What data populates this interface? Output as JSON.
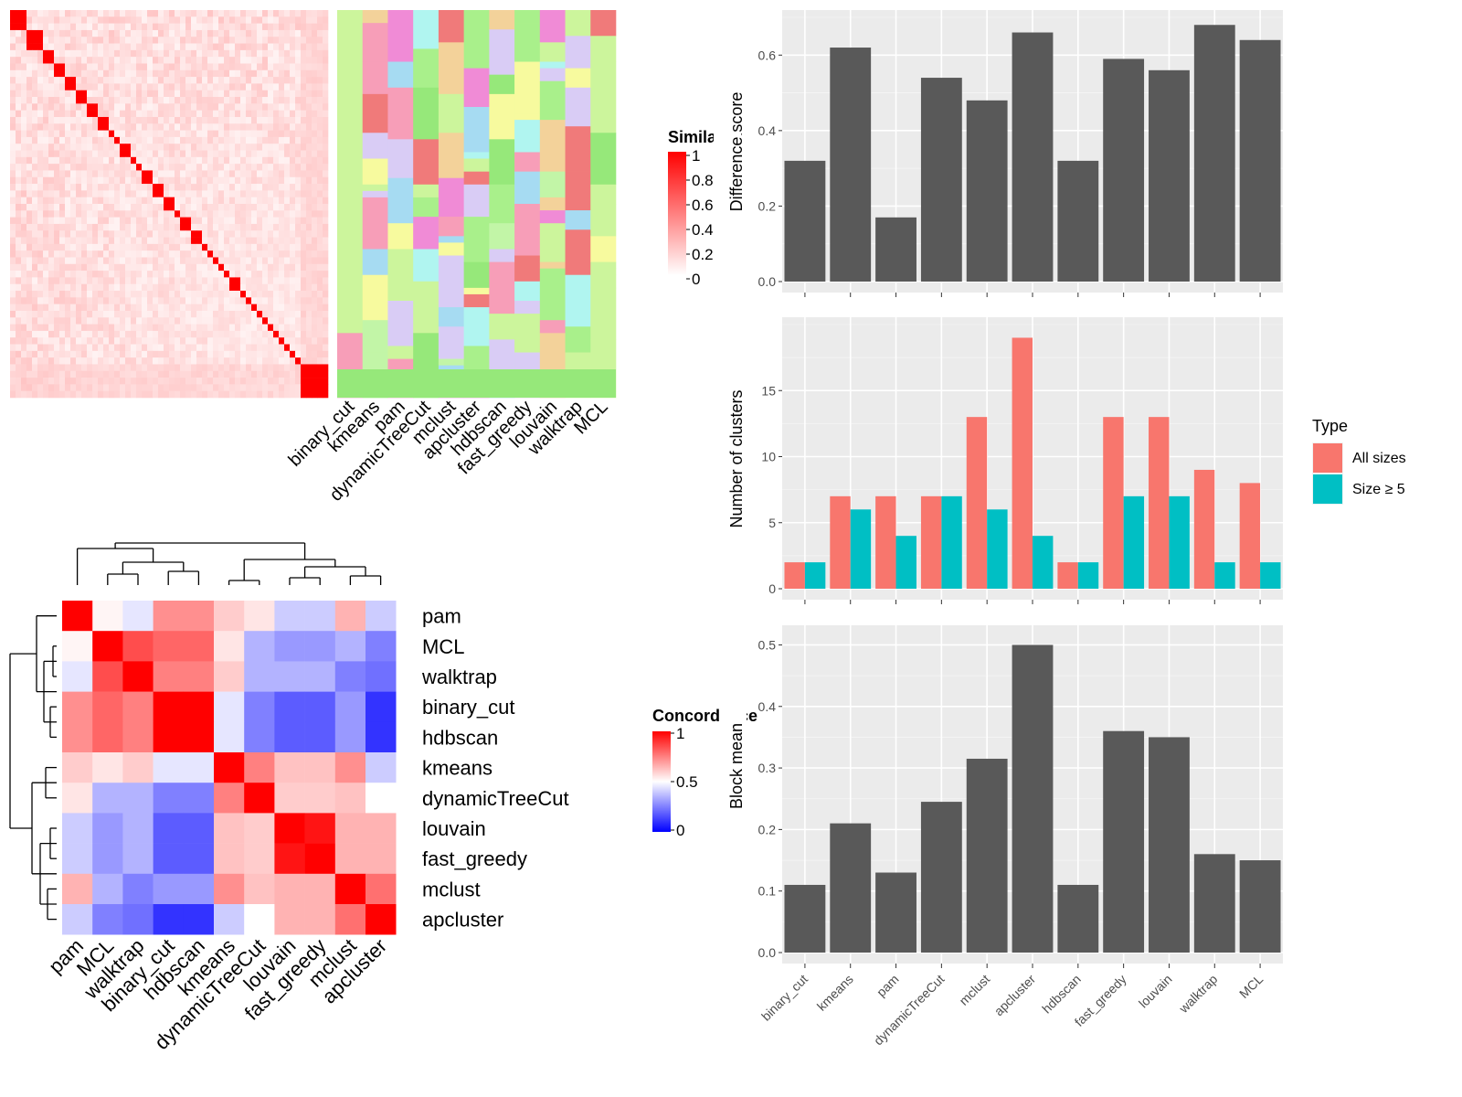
{
  "chart_data": [
    {
      "type": "heatmap",
      "legend_title": "Similarity",
      "legend_ticks": [
        "1",
        "0.8",
        "0.6",
        "0.4",
        "0.2",
        "0"
      ],
      "colors": {
        "high": "#ff0000",
        "low": "#ffffff"
      },
      "column_labels": [
        "binary_cut",
        "kmeans",
        "pam",
        "dynamicTreeCut",
        "mclust",
        "apcluster",
        "hdbscan",
        "fast_greedy",
        "louvain",
        "walktrap",
        "MCL"
      ]
    },
    {
      "type": "heatmap",
      "legend_title": "Concordance",
      "legend_ticks": [
        "1",
        "0.5",
        "0"
      ],
      "colors": {
        "high": "#ff0000",
        "mid": "#ffffff",
        "low": "#0000ff"
      },
      "row_labels": [
        "pam",
        "MCL",
        "walktrap",
        "binary_cut",
        "hdbscan",
        "kmeans",
        "dynamicTreeCut",
        "louvain",
        "fast_greedy",
        "mclust",
        "apcluster"
      ],
      "column_labels": [
        "pam",
        "MCL",
        "walktrap",
        "binary_cut",
        "hdbscan",
        "kmeans",
        "dynamicTreeCut",
        "louvain",
        "fast_greedy",
        "mclust",
        "apcluster"
      ],
      "values": [
        [
          1.0,
          0.52,
          0.45,
          0.72,
          0.72,
          0.6,
          0.55,
          0.4,
          0.4,
          0.65,
          0.4
        ],
        [
          0.52,
          1.0,
          0.85,
          0.8,
          0.8,
          0.55,
          0.35,
          0.3,
          0.3,
          0.35,
          0.25
        ],
        [
          0.45,
          0.85,
          1.0,
          0.75,
          0.75,
          0.6,
          0.35,
          0.35,
          0.35,
          0.25,
          0.22
        ],
        [
          0.72,
          0.8,
          0.75,
          1.0,
          1.0,
          0.45,
          0.25,
          0.18,
          0.18,
          0.3,
          0.1
        ],
        [
          0.72,
          0.8,
          0.75,
          1.0,
          1.0,
          0.45,
          0.25,
          0.18,
          0.18,
          0.3,
          0.1
        ],
        [
          0.6,
          0.55,
          0.6,
          0.45,
          0.45,
          1.0,
          0.75,
          0.62,
          0.62,
          0.72,
          0.4
        ],
        [
          0.55,
          0.35,
          0.35,
          0.25,
          0.25,
          0.75,
          1.0,
          0.6,
          0.6,
          0.62,
          0.5
        ],
        [
          0.4,
          0.3,
          0.35,
          0.18,
          0.18,
          0.62,
          0.6,
          1.0,
          0.96,
          0.65,
          0.65
        ],
        [
          0.4,
          0.3,
          0.35,
          0.18,
          0.18,
          0.62,
          0.6,
          0.96,
          1.0,
          0.65,
          0.65
        ],
        [
          0.65,
          0.35,
          0.25,
          0.3,
          0.3,
          0.72,
          0.62,
          0.65,
          0.65,
          1.0,
          0.78
        ],
        [
          0.4,
          0.25,
          0.22,
          0.1,
          0.1,
          0.4,
          0.5,
          0.65,
          0.65,
          0.78,
          1.0
        ]
      ]
    },
    {
      "type": "bar",
      "ylabel": "Difference score",
      "categories": [
        "binary_cut",
        "kmeans",
        "pam",
        "dynamicTreeCut",
        "mclust",
        "apcluster",
        "hdbscan",
        "fast_greedy",
        "louvain",
        "walktrap",
        "MCL"
      ],
      "values": [
        0.32,
        0.62,
        0.17,
        0.54,
        0.48,
        0.66,
        0.32,
        0.59,
        0.56,
        0.68,
        0.64
      ],
      "ylim": [
        0,
        0.7
      ],
      "yticks": [
        "0.0",
        "0.2",
        "0.4",
        "0.6"
      ],
      "bar_color": "#595959"
    },
    {
      "type": "bar",
      "ylabel": "Number of clusters",
      "categories": [
        "binary_cut",
        "kmeans",
        "pam",
        "dynamicTreeCut",
        "mclust",
        "apcluster",
        "hdbscan",
        "fast_greedy",
        "louvain",
        "walktrap",
        "MCL"
      ],
      "legend_title": "Type",
      "series": [
        {
          "name": "All sizes",
          "color": "#f8766d",
          "values": [
            2,
            7,
            7,
            7,
            13,
            19,
            2,
            13,
            13,
            9,
            8
          ]
        },
        {
          "name": "Size ≥ 5",
          "color": "#00bfc4",
          "values": [
            2,
            6,
            4,
            7,
            6,
            4,
            2,
            7,
            7,
            2,
            2
          ]
        }
      ],
      "ylim": [
        0,
        20
      ],
      "yticks": [
        "0",
        "5",
        "10",
        "15"
      ]
    },
    {
      "type": "bar",
      "ylabel": "Block mean",
      "categories": [
        "binary_cut",
        "kmeans",
        "pam",
        "dynamicTreeCut",
        "mclust",
        "apcluster",
        "hdbscan",
        "fast_greedy",
        "louvain",
        "walktrap",
        "MCL"
      ],
      "values": [
        0.11,
        0.21,
        0.13,
        0.245,
        0.315,
        0.5,
        0.11,
        0.36,
        0.35,
        0.16,
        0.15
      ],
      "ylim": [
        0,
        0.52
      ],
      "yticks": [
        "0.0",
        "0.1",
        "0.2",
        "0.3",
        "0.4",
        "0.5"
      ],
      "bar_color": "#595959"
    }
  ]
}
